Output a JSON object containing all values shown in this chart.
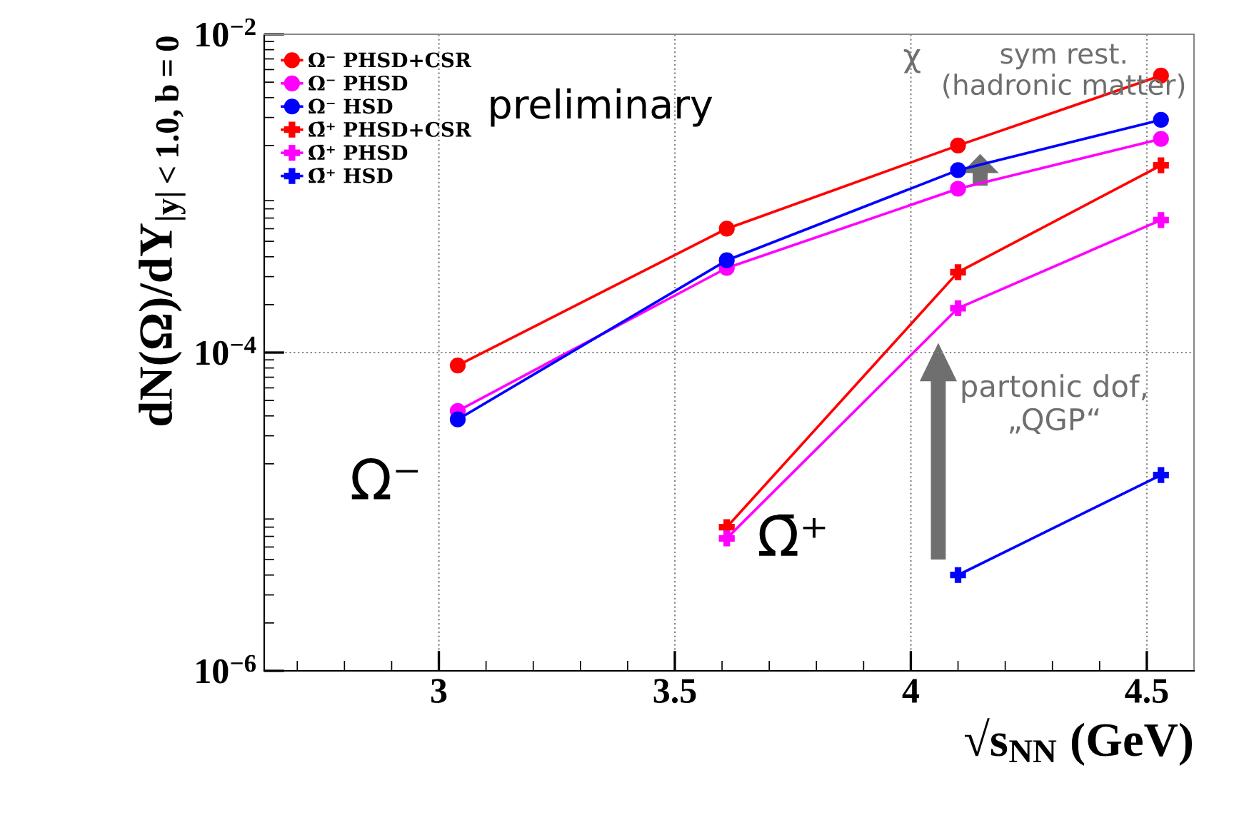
{
  "chart_data": {
    "type": "line",
    "xlabel": "√s$_{NN}$ (GeV)",
    "ylabel": "dN(Ω)/dY$_{|y|<1.0,b=0}$",
    "log": "y",
    "xlim": [
      2.63,
      4.6
    ],
    "xticks": [
      3,
      3.5,
      4,
      4.5
    ],
    "ylim": [
      1e-06,
      0.01
    ],
    "yticks": [
      {
        "value": 1e-06,
        "label": "10$^{−6}$"
      },
      {
        "value": 0.0001,
        "label": "10$^{−4}$"
      },
      {
        "value": 0.01,
        "label": "10$^{−2}$"
      }
    ],
    "grid": true,
    "legend": "top left",
    "annotations": [
      "preliminary",
      "Ω⁻",
      "Ω̄⁺",
      "partonic dof,\n„QGP“",
      "χ",
      "sym rest.\n(hadronic matter)"
    ],
    "x": [
      3.04,
      3.61,
      4.1,
      4.53
    ],
    "series": [
      {
        "name": "Ω⁻ PHSD+CSR",
        "color": "#ff0000",
        "marker": "circle",
        "values": [
          8.3e-05,
          0.0006,
          0.002,
          0.0055
        ]
      },
      {
        "name": "Ω⁻ PHSD",
        "color": "#ff00ff",
        "marker": "circle",
        "values": [
          4.3e-05,
          0.00034,
          0.00107,
          0.0022
        ]
      },
      {
        "name": "Ω⁻ HSD",
        "color": "#0000ff",
        "marker": "circle",
        "values": [
          3.8e-05,
          0.00038,
          0.0014,
          0.0029
        ]
      },
      {
        "name": "Ω̄⁺ PHSD+CSR",
        "color": "#ff0000",
        "marker": "cross",
        "values": [
          null,
          8e-06,
          0.00032,
          0.0015
        ]
      },
      {
        "name": "Ω̄⁺ PHSD",
        "color": "#ff00ff",
        "marker": "cross",
        "values": [
          null,
          6.8e-06,
          0.00019,
          0.00068
        ]
      },
      {
        "name": "Ω̄⁺ HSD",
        "color": "#0000ff",
        "marker": "cross",
        "values": [
          null,
          null,
          4e-06,
          1.7e-05
        ]
      }
    ]
  }
}
